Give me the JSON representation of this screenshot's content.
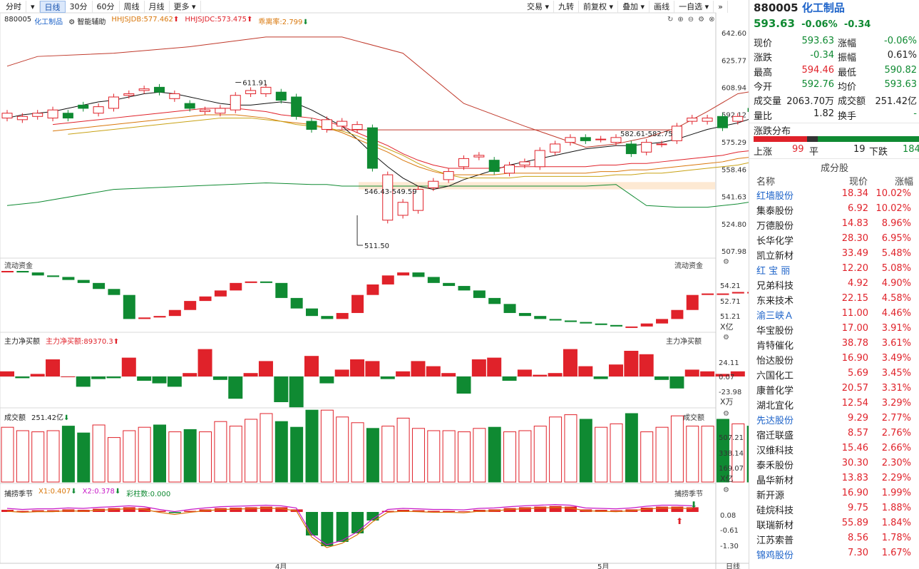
{
  "toolbar": {
    "left": [
      "分时",
      "日线",
      "30分",
      "60分",
      "周线",
      "月线",
      "更多"
    ],
    "selected": "日线",
    "right": [
      "交易",
      "九转",
      "前复权",
      "叠加",
      "画线",
      "一自选"
    ]
  },
  "main": {
    "code": "880005",
    "name": "化工制品",
    "assist": "智能辅助",
    "indicators": [
      {
        "label": "HHJSJDB:577.462",
        "color": "#d9770b"
      },
      {
        "label": "HHJSJDC:573.475",
        "color": "#e0222a"
      },
      {
        "label": "乖离率:2.799",
        "color": "#d9770b"
      }
    ],
    "y_ticks": [
      "642.60",
      "625.77",
      "608.94",
      "592.12",
      "575.29",
      "558.46",
      "541.63",
      "524.80",
      "507.98"
    ],
    "annotations": {
      "high": "611.91",
      "low": "511.50",
      "range1": "546.43-549.59",
      "range2": "582.61-582.75"
    }
  },
  "panels": {
    "flow": {
      "title": "流动资金",
      "title_r": "流动资金",
      "ticks": [
        "54.21",
        "52.71",
        "51.21"
      ],
      "unit": "X亿"
    },
    "net": {
      "title": "主力净买额",
      "label": "主力净买额:89370.3",
      "title_r": "主力净买额",
      "ticks": [
        "24.11",
        "0.07",
        "-23.98"
      ],
      "unit": "X万"
    },
    "vol": {
      "title": "成交额",
      "label": "251.42亿",
      "title_r": "成交额",
      "ticks": [
        "507.21",
        "338.14",
        "169.07"
      ],
      "unit": "X亿"
    },
    "season": {
      "title": "捕捞季节",
      "x1": "X1:0.407",
      "x2": "X2:0.378",
      "bar": "彩柱数:0.000",
      "title_r": "捕捞季节",
      "ticks": [
        "0.08",
        "-0.61",
        "-1.30"
      ]
    }
  },
  "x_axis": {
    "labels": [
      "4月",
      "5月"
    ],
    "right": "日线"
  },
  "side": {
    "code": "880005",
    "name": "化工制品",
    "price": "593.63",
    "chg_pct": "-0.06%",
    "chg": "-0.34",
    "quote": [
      [
        "现价",
        "593.63",
        "涨幅",
        "-0.06%"
      ],
      [
        "涨跌",
        "-0.34",
        "振幅",
        "0.61%"
      ],
      [
        "最高",
        "594.46",
        "最低",
        "590.82"
      ],
      [
        "今开",
        "592.76",
        "均价",
        "593.63"
      ],
      [
        "成交量",
        "2063.70万",
        "成交额",
        "251.42亿"
      ],
      [
        "量比",
        "1.82",
        "换手",
        "-"
      ]
    ],
    "dist_title": "涨跌分布",
    "up_label": "上涨",
    "up": "99",
    "flat_label": "平",
    "flat": "19",
    "down_label": "下跌",
    "down": "184",
    "stocks_title": "成分股",
    "cols": [
      "名称",
      "现价",
      "涨幅"
    ],
    "stocks": [
      [
        "红墙股份",
        "18.34",
        "10.02%"
      ],
      [
        "集泰股份",
        "6.92",
        "10.02%"
      ],
      [
        "万德股份",
        "14.83",
        "8.96%"
      ],
      [
        "长华化学",
        "28.30",
        "6.95%"
      ],
      [
        "凯立新材",
        "33.49",
        "5.48%"
      ],
      [
        "红 宝 丽",
        "12.20",
        "5.08%"
      ],
      [
        "兄弟科技",
        "4.92",
        "4.90%"
      ],
      [
        "东来技术",
        "22.15",
        "4.58%"
      ],
      [
        "渝三峡Ａ",
        "11.00",
        "4.46%"
      ],
      [
        "华宝股份",
        "17.00",
        "3.91%"
      ],
      [
        "肯特催化",
        "38.78",
        "3.61%"
      ],
      [
        "怡达股份",
        "16.90",
        "3.49%"
      ],
      [
        "六国化工",
        "5.69",
        "3.45%"
      ],
      [
        "康普化学",
        "20.57",
        "3.31%"
      ],
      [
        "湖北宜化",
        "12.54",
        "3.29%"
      ],
      [
        "先达股份",
        "9.29",
        "2.77%"
      ],
      [
        "宿迁联盛",
        "8.57",
        "2.76%"
      ],
      [
        "汉维科技",
        "15.46",
        "2.66%"
      ],
      [
        "泰禾股份",
        "30.30",
        "2.30%"
      ],
      [
        "晶华新材",
        "13.83",
        "2.29%"
      ],
      [
        "新开源",
        "16.90",
        "1.99%"
      ],
      [
        "硅烷科技",
        "9.75",
        "1.88%"
      ],
      [
        "联瑞新材",
        "55.89",
        "1.84%"
      ],
      [
        "江苏索普",
        "8.56",
        "1.78%"
      ],
      [
        "锦鸡股份",
        "7.30",
        "1.67%"
      ]
    ],
    "blue_names": [
      "红墙股份",
      "红 宝 丽",
      "渝三峡Ａ",
      "先达股份",
      "锦鸡股份"
    ]
  },
  "colors": {
    "up": "#e0222a",
    "down": "#0f8a32",
    "link": "#1d63c9"
  },
  "chart_data": {
    "type": "candlestick",
    "candles": [
      [
        590,
        593
      ],
      [
        589,
        591
      ],
      [
        591,
        593
      ],
      [
        590,
        595
      ],
      [
        593,
        590
      ],
      [
        598,
        596
      ],
      [
        593,
        597
      ],
      [
        596,
        603
      ],
      [
        604,
        605
      ],
      [
        607,
        608
      ],
      [
        609,
        606
      ],
      [
        602,
        605
      ],
      [
        599,
        596
      ],
      [
        594,
        595
      ],
      [
        593,
        596
      ],
      [
        595,
        604
      ],
      [
        605,
        607
      ],
      [
        605,
        609
      ],
      [
        606,
        601
      ],
      [
        603,
        591
      ],
      [
        588,
        583
      ],
      [
        583,
        589
      ],
      [
        585,
        588
      ],
      [
        583,
        586
      ],
      [
        584,
        559
      ],
      [
        527,
        555
      ],
      [
        530,
        538
      ],
      [
        533,
        546
      ],
      [
        547,
        551
      ],
      [
        552,
        557
      ],
      [
        560,
        565
      ],
      [
        566,
        567
      ],
      [
        564,
        557
      ],
      [
        556,
        561
      ],
      [
        561,
        563
      ],
      [
        560,
        570
      ],
      [
        569,
        574
      ],
      [
        575,
        578
      ],
      [
        578,
        576
      ],
      [
        577,
        577
      ],
      [
        575,
        578
      ],
      [
        574,
        568
      ],
      [
        569,
        575
      ],
      [
        574,
        574
      ],
      [
        576,
        585
      ],
      [
        588,
        590
      ],
      [
        588,
        590
      ],
      [
        591,
        584
      ],
      [
        588,
        591
      ],
      [
        596,
        594
      ],
      [
        592,
        593
      ]
    ],
    "lines": {
      "black": [
        590,
        592,
        593,
        594,
        596,
        598,
        600,
        601,
        603,
        605,
        606,
        605,
        603,
        601,
        599,
        598,
        598,
        599,
        600,
        599,
        595,
        590,
        585,
        577,
        568,
        560,
        553,
        548,
        546,
        548,
        552,
        555,
        558,
        561,
        563,
        565,
        567,
        569,
        571,
        572,
        573,
        573,
        574,
        575,
        577,
        580,
        583,
        585,
        587,
        590,
        592
      ],
      "red": [
        588,
        589,
        590,
        591,
        592,
        593,
        594,
        595,
        596,
        597,
        598,
        598,
        598,
        597,
        596,
        594,
        593,
        592,
        590,
        587,
        583,
        579,
        575,
        570,
        566,
        563,
        561,
        561,
        561,
        561,
        562,
        562,
        562,
        562,
        562,
        562,
        563,
        563,
        564,
        564,
        565,
        566,
        567,
        568,
        569,
        571,
        572,
        574
      ]
    },
    "upper": {
      "x": [
        0,
        2,
        7,
        12,
        17,
        20,
        21,
        22,
        26,
        30,
        34,
        38,
        40,
        42,
        44,
        46,
        48,
        50,
        52
      ],
      "y": [
        622,
        628,
        630,
        634,
        640,
        640,
        640,
        640,
        630,
        599,
        585,
        572,
        574,
        578,
        584,
        594,
        605,
        608,
        612
      ]
    },
    "lower": {
      "x": [
        0,
        2,
        7,
        12,
        17,
        20,
        21,
        22,
        26,
        30,
        34,
        38,
        40,
        42,
        44,
        46,
        48,
        50,
        52
      ],
      "y": [
        536,
        538,
        546,
        548,
        550,
        549,
        549,
        548,
        548,
        548,
        548,
        548,
        549,
        536,
        535,
        535,
        537,
        540,
        538
      ]
    },
    "flow": [
      54.8,
      54.7,
      54.5,
      54.4,
      54.2,
      54.0,
      53.6,
      53.2,
      51.6,
      51.7,
      51.8,
      52.2,
      52.8,
      53.1,
      53.5,
      54.0,
      54.1,
      54.0,
      53.0,
      52.3,
      51.8,
      51.6,
      52.0,
      53.2,
      53.9,
      54.5,
      54.7,
      54.4,
      54.0,
      53.8,
      53.5,
      53.0,
      52.6,
      52.0,
      51.8,
      51.6,
      51.5,
      51.4,
      51.3,
      51.2,
      51.1,
      51.1,
      51.3,
      51.6,
      52.2,
      53.2,
      53.3,
      53.3,
      53.4,
      53.4,
      51.3
    ],
    "net": [
      6,
      -2,
      3,
      20,
      0,
      -12,
      -3,
      -2,
      22,
      -5,
      -8,
      -12,
      4,
      32,
      -4,
      -26,
      4,
      18,
      -30,
      -36,
      24,
      -8,
      8,
      20,
      18,
      -3,
      6,
      18,
      12,
      4,
      -20,
      20,
      22,
      -5,
      8,
      2,
      4,
      32,
      12,
      -3,
      14,
      30,
      26,
      -4,
      -14,
      8,
      6,
      3,
      6
    ],
    "vol": [
      48,
      45,
      44,
      45,
      49,
      43,
      50,
      39,
      45,
      48,
      50,
      44,
      46,
      44,
      53,
      49,
      55,
      60,
      53,
      48,
      63,
      63,
      57,
      52,
      47,
      49,
      56,
      47,
      45,
      45,
      44,
      47,
      48,
      44,
      45,
      49,
      57,
      59,
      55,
      48,
      51,
      60,
      44,
      48,
      58,
      49,
      49,
      55,
      51,
      49,
      22
    ],
    "season": {
      "red": [
        0.1,
        0.05,
        0.08,
        0.08,
        0.12,
        0.1,
        0.15,
        0.18,
        0.22,
        0.18,
        0.05,
        -0.05,
        0.05,
        0.12,
        0.18,
        0.2,
        0.22,
        0.25,
        0.22,
        0.12,
        -1.1,
        -1.6,
        -1.4,
        -1.0,
        -0.4,
        0.05,
        0.1,
        0.08,
        0.05,
        0.05,
        0.03,
        0.1,
        0.12,
        0.18,
        0.22,
        0.25,
        0.28,
        0.25,
        0.12,
        0.1,
        0.08,
        0.12,
        0.2,
        0.25,
        0.25,
        0.22
      ]
    }
  }
}
